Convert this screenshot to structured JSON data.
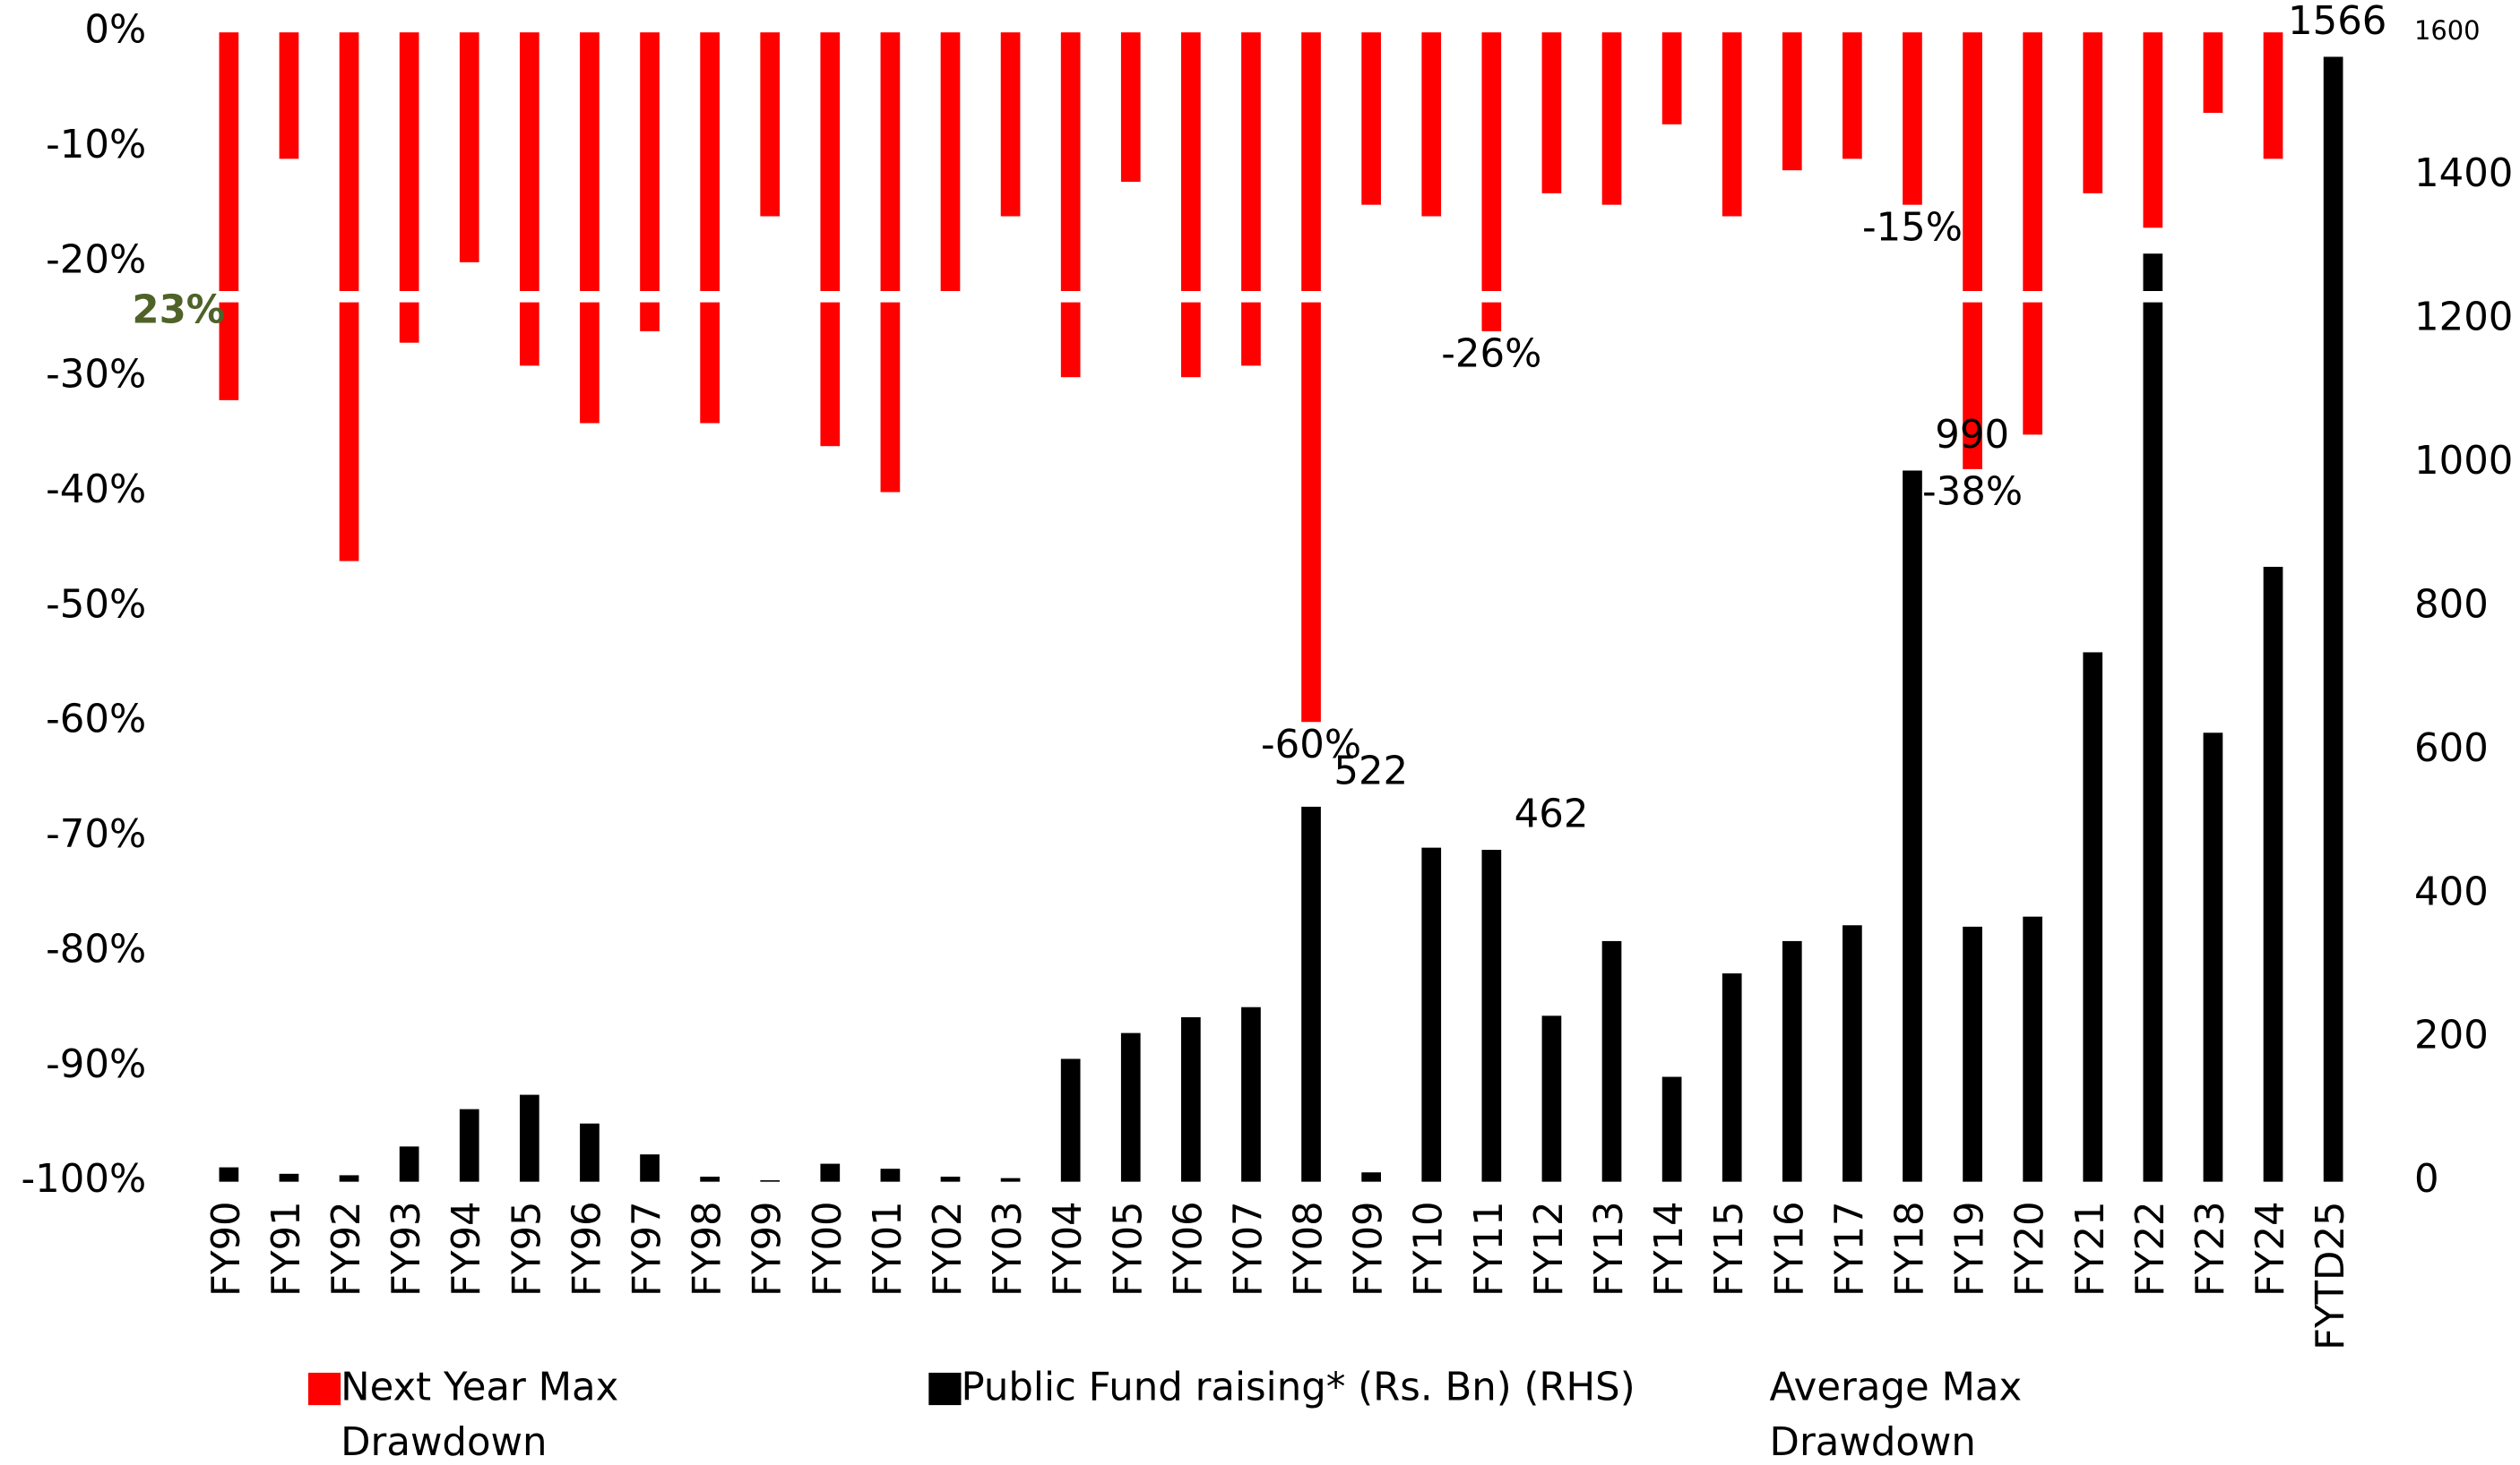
{
  "chart_data": {
    "type": "bar",
    "categories": [
      "FY90",
      "FY91",
      "FY92",
      "FY93",
      "FY94",
      "FY95",
      "FY96",
      "FY97",
      "FY98",
      "FY99",
      "FY00",
      "FY01",
      "FY02",
      "FY03",
      "FY04",
      "FY05",
      "FY06",
      "FY07",
      "FY08",
      "FY09",
      "FY10",
      "FY11",
      "FY12",
      "FY13",
      "FY14",
      "FY15",
      "FY16",
      "FY17",
      "FY18",
      "FY19",
      "FY20",
      "FY21",
      "FY22",
      "FY23",
      "FY24",
      "FYTD25"
    ],
    "series": [
      {
        "name": "Next Year Max Drawdown",
        "color": "#ff0000",
        "values": [
          -32,
          -11,
          -46,
          -27,
          -20,
          -29,
          -34,
          -26,
          -34,
          -16,
          -36,
          -40,
          -23,
          -16,
          -30,
          -13,
          -30,
          -29,
          -60,
          -15,
          -16,
          -26,
          -14,
          -15,
          -8,
          -16,
          -12,
          -11,
          -15,
          -38,
          -35,
          -14,
          -17,
          -7,
          -11,
          null
        ],
        "value_labels": [
          null,
          null,
          null,
          null,
          null,
          null,
          null,
          null,
          null,
          null,
          null,
          null,
          null,
          null,
          null,
          null,
          null,
          null,
          "-60%",
          null,
          null,
          "-26%",
          null,
          null,
          null,
          null,
          null,
          null,
          "-15%",
          "-38%",
          null,
          null,
          null,
          null,
          null,
          null
        ]
      },
      {
        "name": "Public Fund raising* (Rs. Bn) (RHS)",
        "color": "#000000",
        "axis": "y2",
        "values": [
          20,
          11,
          9,
          49,
          101,
          121,
          81,
          38,
          7,
          2,
          25,
          18,
          7,
          5,
          171,
          207,
          229,
          243,
          522,
          13,
          465,
          462,
          231,
          335,
          146,
          290,
          335,
          357,
          990,
          355,
          369,
          737,
          1292,
          625,
          856,
          1566
        ],
        "value_labels": [
          null,
          null,
          null,
          null,
          null,
          null,
          null,
          null,
          null,
          null,
          null,
          null,
          null,
          null,
          null,
          null,
          null,
          null,
          "522",
          null,
          null,
          "462",
          null,
          null,
          null,
          null,
          null,
          null,
          "990",
          null,
          null,
          null,
          null,
          null,
          null,
          "1566"
        ]
      }
    ],
    "average": {
      "name": "Average Max Drawdown",
      "color": "#ffffff",
      "value": -23,
      "value_label": "23%",
      "label_color": "#4f6228"
    },
    "ylim": [
      -100,
      0
    ],
    "yticks": [
      {
        "value": 0,
        "label": "0%"
      },
      {
        "value": -10,
        "label": "-10%"
      },
      {
        "value": -20,
        "label": "-20%"
      },
      {
        "value": -30,
        "label": "-30%"
      },
      {
        "value": -40,
        "label": "-40%"
      },
      {
        "value": -50,
        "label": "-50%"
      },
      {
        "value": -60,
        "label": "-60%"
      },
      {
        "value": -70,
        "label": "-70%"
      },
      {
        "value": -80,
        "label": "-80%"
      },
      {
        "value": -90,
        "label": "-90%"
      },
      {
        "value": -100,
        "label": "-100%"
      }
    ],
    "y2lim": [
      0,
      1600
    ],
    "y2ticks": [
      0,
      200,
      400,
      600,
      800,
      1000,
      1200,
      1400,
      1600
    ],
    "grid": false
  }
}
